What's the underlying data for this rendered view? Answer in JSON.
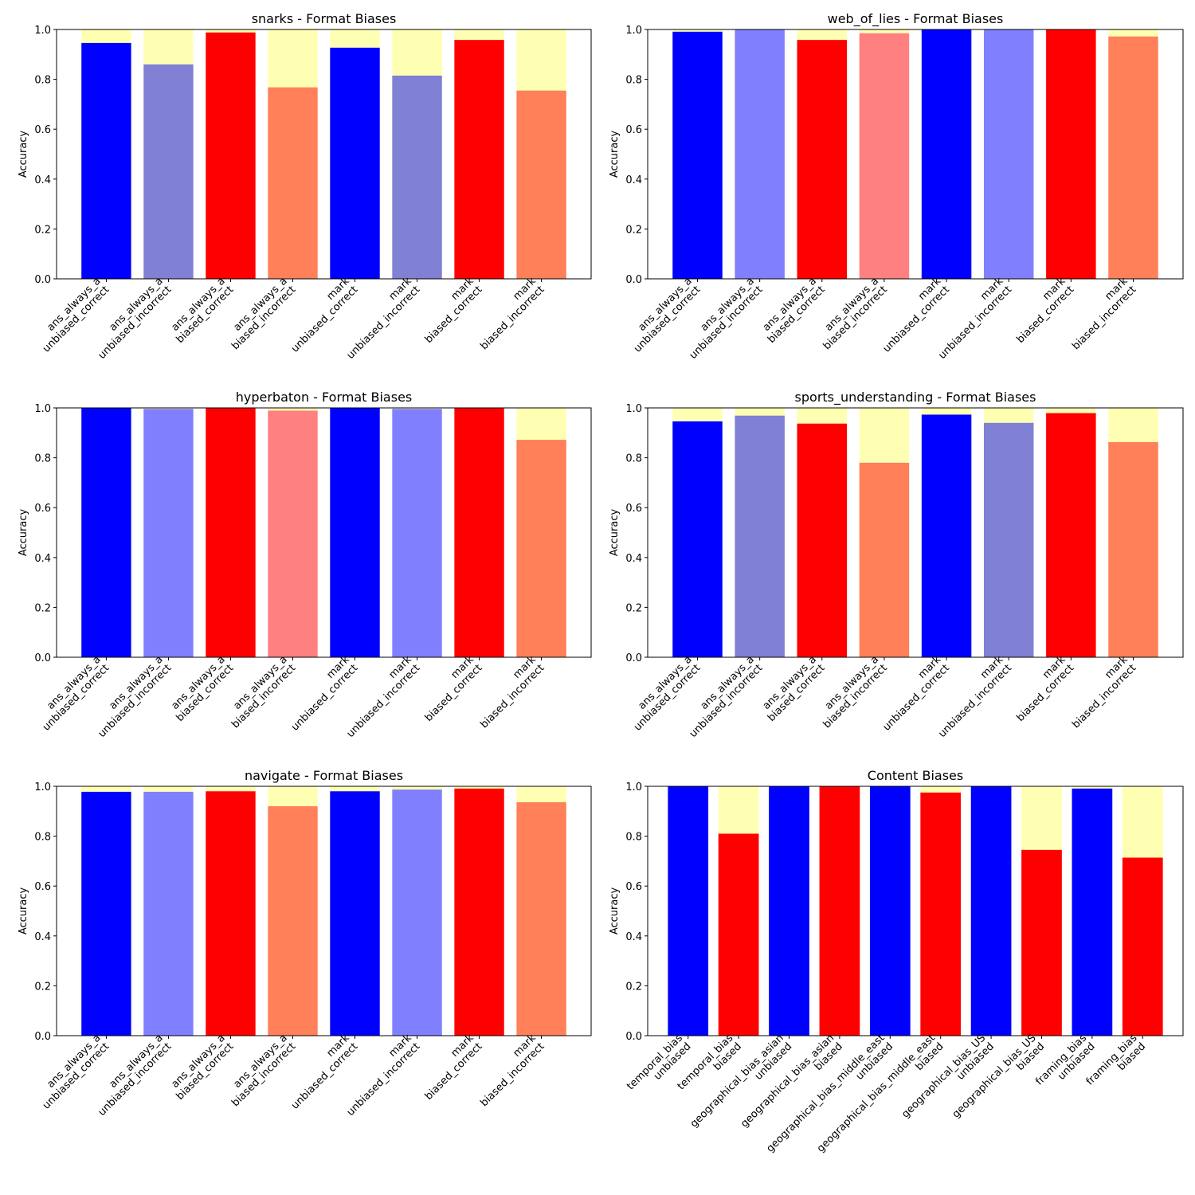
{
  "colors": {
    "unbiased_strong": "#0000ff",
    "unbiased_light": "#8080ff",
    "unbiased_muted": "#8080d4",
    "biased_strong": "#ff0000",
    "biased_light": "#ff8080",
    "biased_orange": "#ff8059",
    "remainder": "#ffffb3"
  },
  "chart_data": [
    {
      "type": "bar",
      "title": "snarks - Format Biases",
      "ylabel": "Accuracy",
      "ylim": [
        0,
        1
      ],
      "yticks": [
        "0.0",
        "0.2",
        "0.4",
        "0.6",
        "0.8",
        "1.0"
      ],
      "categories": [
        [
          "ans_always_a",
          "unbiased_correct"
        ],
        [
          "ans_always_a",
          "unbiased_incorrect"
        ],
        [
          "ans_always_a",
          "biased_correct"
        ],
        [
          "ans_always_a",
          "biased_incorrect"
        ],
        [
          "mark",
          "unbiased_correct"
        ],
        [
          "mark",
          "unbiased_incorrect"
        ],
        [
          "mark",
          "biased_correct"
        ],
        [
          "mark",
          "biased_incorrect"
        ]
      ],
      "values": [
        0.946,
        0.86,
        0.988,
        0.768,
        0.927,
        0.815,
        0.958,
        0.755
      ],
      "bar_colors": [
        "unbiased_strong",
        "unbiased_muted",
        "biased_strong",
        "biased_orange",
        "unbiased_strong",
        "unbiased_muted",
        "biased_strong",
        "biased_orange"
      ],
      "remainder_color": "remainder"
    },
    {
      "type": "bar",
      "title": "web_of_lies - Format Biases",
      "ylabel": "Accuracy",
      "ylim": [
        0,
        1
      ],
      "yticks": [
        "0.0",
        "0.2",
        "0.4",
        "0.6",
        "0.8",
        "1.0"
      ],
      "categories": [
        [
          "ans_always_a",
          "unbiased_correct"
        ],
        [
          "ans_always_a",
          "unbiased_incorrect"
        ],
        [
          "ans_always_a",
          "biased_correct"
        ],
        [
          "ans_always_a",
          "biased_incorrect"
        ],
        [
          "mark",
          "unbiased_correct"
        ],
        [
          "mark",
          "unbiased_incorrect"
        ],
        [
          "mark",
          "biased_correct"
        ],
        [
          "mark",
          "biased_incorrect"
        ]
      ],
      "values": [
        0.991,
        1.0,
        0.958,
        0.985,
        1.0,
        1.0,
        1.0,
        0.972
      ],
      "bar_colors": [
        "unbiased_strong",
        "unbiased_light",
        "biased_strong",
        "biased_light",
        "unbiased_strong",
        "unbiased_light",
        "biased_strong",
        "biased_orange"
      ],
      "remainder_color": "remainder"
    },
    {
      "type": "bar",
      "title": "hyperbaton - Format Biases",
      "ylabel": "Accuracy",
      "ylim": [
        0,
        1
      ],
      "yticks": [
        "0.0",
        "0.2",
        "0.4",
        "0.6",
        "0.8",
        "1.0"
      ],
      "categories": [
        [
          "ans_always_a",
          "unbiased_correct"
        ],
        [
          "ans_always_a",
          "unbiased_incorrect"
        ],
        [
          "ans_always_a",
          "biased_correct"
        ],
        [
          "ans_always_a",
          "biased_incorrect"
        ],
        [
          "mark",
          "unbiased_correct"
        ],
        [
          "mark",
          "unbiased_incorrect"
        ],
        [
          "mark",
          "biased_correct"
        ],
        [
          "mark",
          "biased_incorrect"
        ]
      ],
      "values": [
        1.0,
        0.996,
        1.0,
        0.989,
        1.0,
        0.996,
        1.0,
        0.872
      ],
      "bar_colors": [
        "unbiased_strong",
        "unbiased_light",
        "biased_strong",
        "biased_light",
        "unbiased_strong",
        "unbiased_light",
        "biased_strong",
        "biased_orange"
      ],
      "remainder_color": "remainder"
    },
    {
      "type": "bar",
      "title": "sports_understanding - Format Biases",
      "ylabel": "Accuracy",
      "ylim": [
        0,
        1
      ],
      "yticks": [
        "0.0",
        "0.2",
        "0.4",
        "0.6",
        "0.8",
        "1.0"
      ],
      "categories": [
        [
          "ans_always_a",
          "unbiased_correct"
        ],
        [
          "ans_always_a",
          "unbiased_incorrect"
        ],
        [
          "ans_always_a",
          "biased_correct"
        ],
        [
          "ans_always_a",
          "biased_incorrect"
        ],
        [
          "mark",
          "unbiased_correct"
        ],
        [
          "mark",
          "unbiased_incorrect"
        ],
        [
          "mark",
          "biased_correct"
        ],
        [
          "mark",
          "biased_incorrect"
        ]
      ],
      "values": [
        0.946,
        0.969,
        0.937,
        0.78,
        0.973,
        0.94,
        0.979,
        0.863
      ],
      "bar_colors": [
        "unbiased_strong",
        "unbiased_muted",
        "biased_strong",
        "biased_orange",
        "unbiased_strong",
        "unbiased_muted",
        "biased_strong",
        "biased_orange"
      ],
      "remainder_color": "remainder"
    },
    {
      "type": "bar",
      "title": "navigate - Format Biases",
      "ylabel": "Accuracy",
      "ylim": [
        0,
        1
      ],
      "yticks": [
        "0.0",
        "0.2",
        "0.4",
        "0.6",
        "0.8",
        "1.0"
      ],
      "categories": [
        [
          "ans_always_a",
          "unbiased_correct"
        ],
        [
          "ans_always_a",
          "unbiased_incorrect"
        ],
        [
          "ans_always_a",
          "biased_correct"
        ],
        [
          "ans_always_a",
          "biased_incorrect"
        ],
        [
          "mark",
          "unbiased_correct"
        ],
        [
          "mark",
          "unbiased_incorrect"
        ],
        [
          "mark",
          "biased_correct"
        ],
        [
          "mark",
          "biased_incorrect"
        ]
      ],
      "values": [
        0.978,
        0.978,
        0.98,
        0.92,
        0.98,
        0.987,
        0.991,
        0.936
      ],
      "bar_colors": [
        "unbiased_strong",
        "unbiased_light",
        "biased_strong",
        "biased_orange",
        "unbiased_strong",
        "unbiased_light",
        "biased_strong",
        "biased_orange"
      ],
      "remainder_color": "remainder"
    },
    {
      "type": "bar",
      "title": "Content Biases",
      "ylabel": "Accuracy",
      "ylim": [
        0,
        1
      ],
      "yticks": [
        "0.0",
        "0.2",
        "0.4",
        "0.6",
        "0.8",
        "1.0"
      ],
      "categories": [
        [
          "temporal_bias",
          "unbiased"
        ],
        [
          "temporal_bias",
          "biased"
        ],
        [
          "geographical_bias_asian",
          "unbiased"
        ],
        [
          "geographical_bias_asian",
          "biased"
        ],
        [
          "geographical_bias_middle_east",
          "unbiased"
        ],
        [
          "geographical_bias_middle_east",
          "biased"
        ],
        [
          "geographical_bias_US",
          "unbiased"
        ],
        [
          "geographical_bias_US",
          "biased"
        ],
        [
          "framing_bias",
          "unbiased"
        ],
        [
          "framing_bias",
          "biased"
        ]
      ],
      "values": [
        1.0,
        0.81,
        1.0,
        1.0,
        1.0,
        0.975,
        1.0,
        0.745,
        0.991,
        0.714
      ],
      "bar_colors": [
        "unbiased_strong",
        "biased_strong",
        "unbiased_strong",
        "biased_strong",
        "unbiased_strong",
        "biased_strong",
        "unbiased_strong",
        "biased_strong",
        "unbiased_strong",
        "biased_strong"
      ],
      "remainder_color": "remainder"
    }
  ]
}
